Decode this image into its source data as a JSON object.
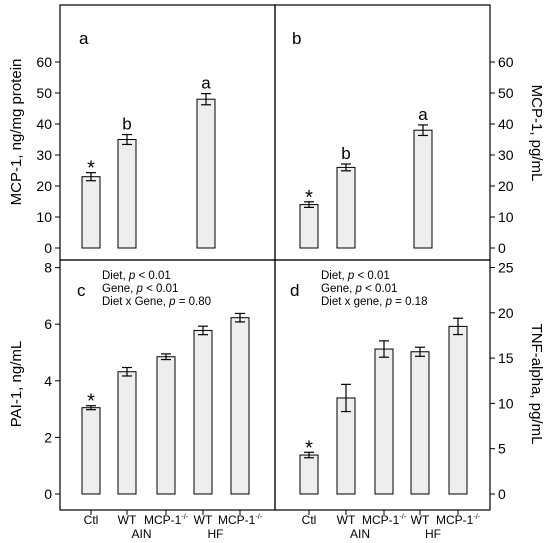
{
  "chart_data": [
    {
      "panel": "a",
      "type": "bar",
      "categories": [
        "Ctl",
        "WT AIN",
        "WT HF"
      ],
      "values": [
        23,
        35,
        48
      ],
      "errors": [
        1.3,
        1.6,
        1.8
      ],
      "significance": [
        "*",
        "b",
        "a"
      ],
      "ylabel": "MCP-1, ng/mg protein",
      "ylim": [
        0,
        60
      ],
      "yticks": [
        0,
        10,
        20,
        30,
        40,
        50,
        60
      ],
      "y_axis_side": "left",
      "stats": []
    },
    {
      "panel": "b",
      "type": "bar",
      "categories": [
        "Ctl",
        "WT AIN",
        "WT HF"
      ],
      "values": [
        14,
        26,
        38
      ],
      "errors": [
        0.9,
        1.1,
        1.7
      ],
      "significance": [
        "*",
        "b",
        "a"
      ],
      "ylabel": "MCP-1, pg/mL",
      "ylim": [
        0,
        60
      ],
      "yticks": [
        0,
        10,
        20,
        30,
        40,
        50,
        60
      ],
      "y_axis_side": "right",
      "stats": []
    },
    {
      "panel": "c",
      "type": "bar",
      "categories": [
        "Ctl",
        "WT AIN",
        "MCP-1-/- AIN",
        "WT HF",
        "MCP-1-/- HF"
      ],
      "values": [
        3.05,
        4.32,
        4.85,
        5.78,
        6.23
      ],
      "errors": [
        0.07,
        0.15,
        0.1,
        0.15,
        0.15
      ],
      "significance": [
        "*",
        "",
        "",
        "",
        ""
      ],
      "ylabel": "PAI-1, ng/mL",
      "ylim": [
        0,
        8
      ],
      "yticks": [
        0,
        2,
        4,
        6,
        8
      ],
      "y_axis_side": "left",
      "stats": [
        {
          "label": "Diet,",
          "p_word": "p",
          "value": "< 0.01"
        },
        {
          "label": "Gene,",
          "p_word": "p",
          "value": "< 0.01"
        },
        {
          "label": "Diet x Gene,",
          "p_word": "p",
          "value": "= 0.80"
        }
      ]
    },
    {
      "panel": "d",
      "type": "bar",
      "categories": [
        "Ctl",
        "WT AIN",
        "MCP-1-/- AIN",
        "WT HF",
        "MCP-1-/- HF"
      ],
      "values": [
        4.3,
        10.6,
        16,
        15.7,
        18.5
      ],
      "errors": [
        0.3,
        1.5,
        0.9,
        0.5,
        0.9
      ],
      "significance": [
        "*",
        "",
        "",
        "",
        ""
      ],
      "ylabel": "TNF-alpha, pg/mL",
      "ylim": [
        0,
        25
      ],
      "yticks": [
        0,
        5,
        10,
        15,
        20,
        25
      ],
      "y_axis_side": "right",
      "stats": [
        {
          "label": "Diet,",
          "p_word": "p",
          "value": "< 0.01"
        },
        {
          "label": "Gene,",
          "p_word": "p",
          "value": "< 0.01"
        },
        {
          "label": "Diet x gene,",
          "p_word": "p",
          "value": "= 0.18"
        }
      ]
    }
  ],
  "x_axis": {
    "labels": [
      {
        "main": "Ctl",
        "sup": ""
      },
      {
        "main": "WT",
        "sup": ""
      },
      {
        "main": "MCP-1",
        "sup": "-/-"
      },
      {
        "main": "WT",
        "sup": ""
      },
      {
        "main": "MCP-1",
        "sup": "-/-"
      }
    ],
    "groups": [
      "AIN",
      "HF"
    ]
  },
  "colors": {
    "bar_fill": "#eeeeee",
    "line": "#000000"
  }
}
